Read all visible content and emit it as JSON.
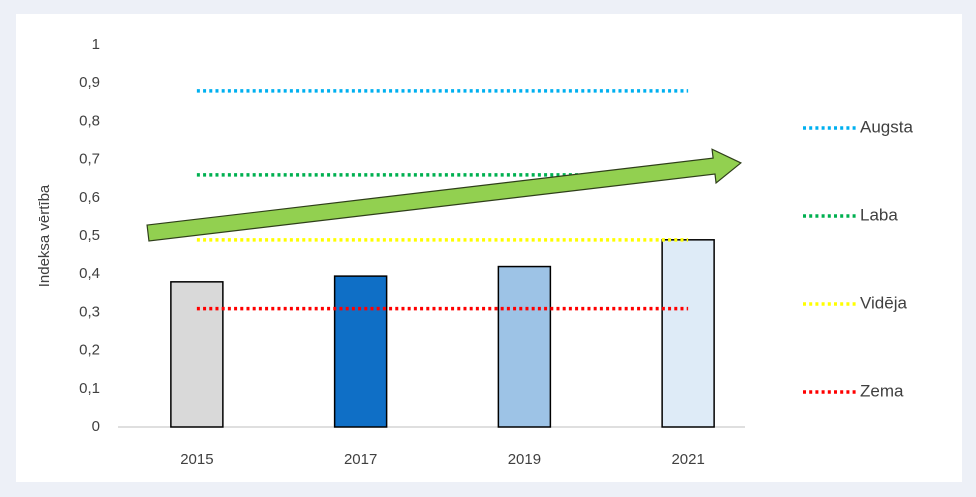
{
  "chart_data": {
    "type": "bar",
    "y_label": "Indeksa vērtība",
    "categories": [
      "2015",
      "2017",
      "2019",
      "2021"
    ],
    "values": [
      0.38,
      0.395,
      0.42,
      0.49
    ],
    "colors": [
      "#d9d9d9",
      "#0f6fc6",
      "#9dc3e6",
      "#deebf7"
    ],
    "series": [
      {
        "name": "Augsta",
        "color": "#00b0f0",
        "values": [
          0.88,
          0.88,
          0.88,
          0.88
        ]
      },
      {
        "name": "Laba",
        "color": "#00b050",
        "values": [
          0.66,
          0.66,
          0.66,
          0.66
        ]
      },
      {
        "name": "Vidēja",
        "color": "#ffff00",
        "values": [
          0.49,
          0.49,
          0.49,
          0.49
        ]
      },
      {
        "name": "Zema",
        "color": "#ff0000",
        "values": [
          0.31,
          0.31,
          0.31,
          0.31
        ]
      }
    ],
    "ylim": [
      0,
      1
    ],
    "yticks": [
      0,
      {
        "value": 0.1,
        "label": "0,1"
      },
      {
        "value": 0.2,
        "label": "0,2"
      },
      {
        "value": 0.3,
        "label": "0,3"
      },
      {
        "value": 0.4,
        "label": "0,4"
      },
      {
        "value": 0.5,
        "label": "0,5"
      },
      {
        "value": 0.6,
        "label": "0,6"
      },
      {
        "value": 0.7,
        "label": "0,7"
      },
      {
        "value": 0.8,
        "label": "0,8"
      },
      {
        "value": 0.9,
        "label": "0,9"
      },
      1
    ],
    "legend": "right"
  }
}
